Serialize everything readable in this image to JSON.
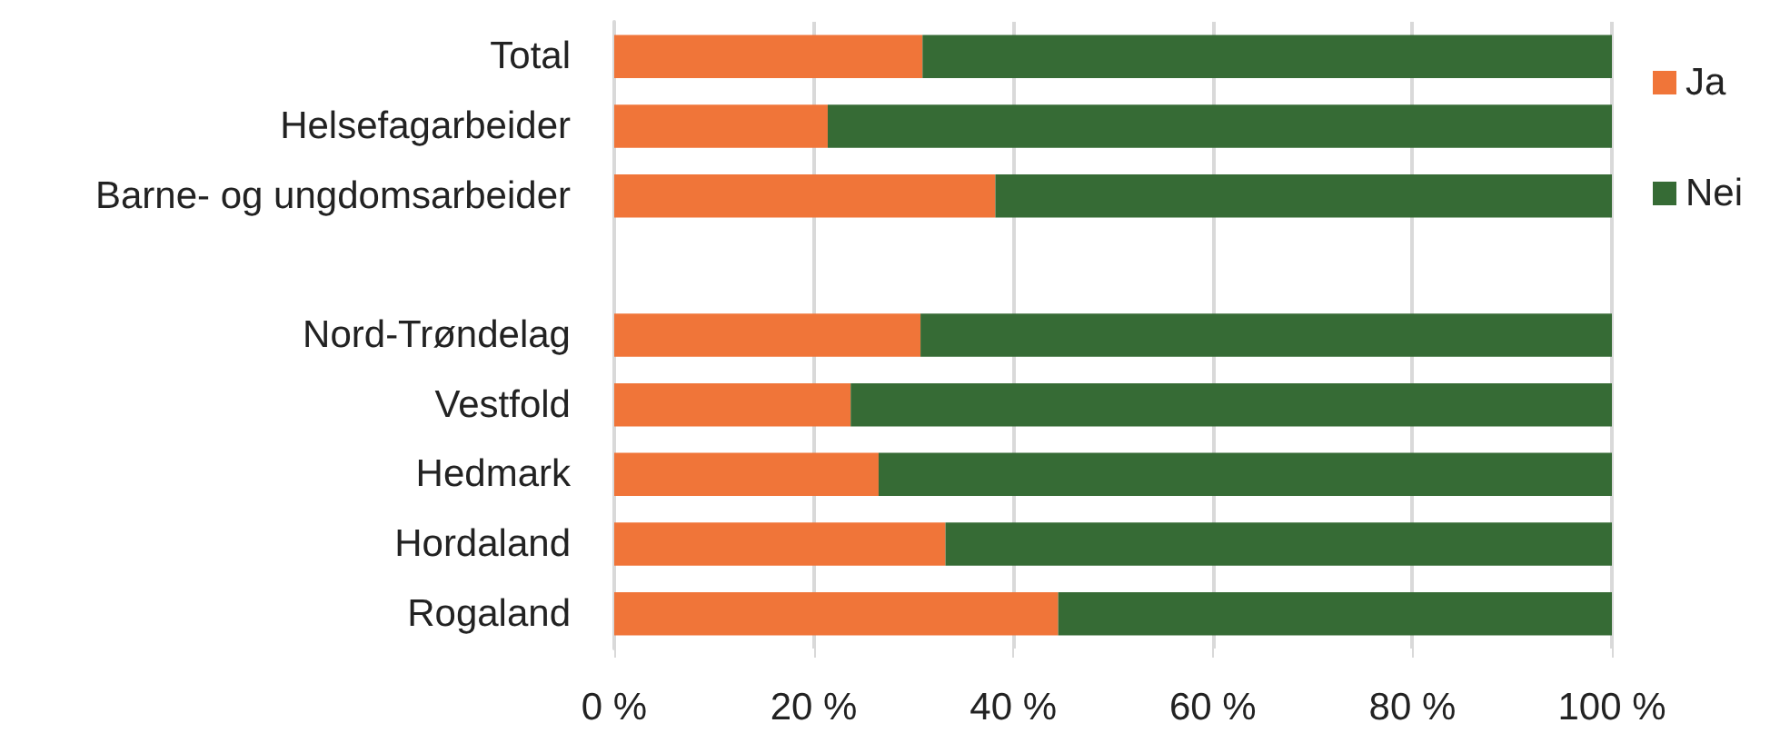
{
  "chart_data": {
    "type": "bar",
    "orientation": "horizontal",
    "stacked": true,
    "categories": [
      "Total",
      "Helsefagarbeider",
      "Barne- og ungdomsarbeider",
      null,
      "Nord-Trøndelag",
      "Vestfold",
      "Hedmark",
      "Hordaland",
      "Rogaland"
    ],
    "series": [
      {
        "name": "Ja",
        "color": "#f07539",
        "values": [
          30.9,
          21.4,
          38.2,
          null,
          30.7,
          23.7,
          26.5,
          33.2,
          44.5
        ]
      },
      {
        "name": "Nei",
        "color": "#366b35",
        "values": [
          69.1,
          78.6,
          61.8,
          null,
          69.3,
          76.3,
          73.5,
          66.8,
          55.5
        ]
      }
    ],
    "xlim": [
      0,
      100
    ],
    "xticks": [
      {
        "value": 0,
        "label": "0 %"
      },
      {
        "value": 20,
        "label": "20 %"
      },
      {
        "value": 40,
        "label": "40 %"
      },
      {
        "value": 60,
        "label": "60 %"
      },
      {
        "value": 80,
        "label": "80 %"
      },
      {
        "value": 100,
        "label": "100 %"
      }
    ],
    "grid": "x",
    "legend": "right"
  }
}
